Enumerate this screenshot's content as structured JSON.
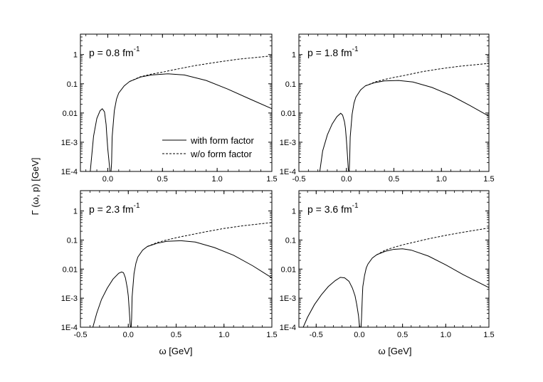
{
  "chart_data": {
    "type": "line",
    "layout": "2x2 panels",
    "ylabel": "Γ (ω, p)  [GeV]",
    "xlabel": "ω [GeV]",
    "yscale": "log",
    "ylim": [
      0.0001,
      5
    ],
    "y_ticks": [
      {
        "value": 0.0001,
        "label": "1E-4"
      },
      {
        "value": 0.001,
        "label": "1E-3"
      },
      {
        "value": 0.01,
        "label": "0.01"
      },
      {
        "value": 0.1,
        "label": "0.1"
      },
      {
        "value": 1,
        "label": "1"
      }
    ],
    "legend": {
      "placement": "lower-right of top-left panel",
      "entries": [
        {
          "label": "with form factor",
          "style": "solid"
        },
        {
          "label": "w/o form factor",
          "style": "dashed"
        }
      ]
    },
    "panels": [
      {
        "label_main": "p = 0.8 fm",
        "label_sup": "-1",
        "xlim": [
          -0.25,
          1.5
        ],
        "x_ticks": [
          0.0,
          0.5,
          1.0,
          1.5
        ],
        "x_tick_labels": [
          "0.0",
          "0.5",
          "1.0",
          "1.5"
        ],
        "series": [
          {
            "name": "with form factor",
            "style": "solid",
            "x": [
              -0.16,
              -0.13,
              -0.1,
              -0.07,
              -0.05,
              -0.03,
              -0.015,
              -0.01,
              0.0,
              0.01,
              0.02,
              0.025,
              0.03,
              0.035,
              0.04,
              0.06,
              0.08,
              0.1,
              0.15,
              0.2,
              0.3,
              0.4,
              0.55,
              0.7,
              0.9,
              1.1,
              1.3,
              1.5
            ],
            "y": [
              0.0001,
              0.0016,
              0.0065,
              0.012,
              0.014,
              0.011,
              0.004,
              0.002,
              0.0006,
              0.00025,
              0.0001,
              0.0001,
              0.0001,
              0.0002,
              0.0015,
              0.012,
              0.03,
              0.048,
              0.085,
              0.12,
              0.17,
              0.2,
              0.22,
              0.2,
              0.13,
              0.065,
              0.03,
              0.014
            ]
          },
          {
            "name": "w/o form factor",
            "style": "dashed",
            "x": [
              0.2,
              0.3,
              0.4,
              0.5,
              0.6,
              0.8,
              1.0,
              1.2,
              1.5
            ],
            "y": [
              0.12,
              0.175,
              0.215,
              0.25,
              0.3,
              0.42,
              0.55,
              0.7,
              0.9
            ]
          }
        ]
      },
      {
        "label_main": "p = 1.8 fm",
        "label_sup": "-1",
        "xlim": [
          -0.5,
          1.5
        ],
        "x_ticks": [
          -0.5,
          0.0,
          0.5,
          1.0,
          1.5
        ],
        "x_tick_labels": [
          "-0.5",
          "0.0",
          "0.5",
          "1.0",
          "1.5"
        ],
        "series": [
          {
            "name": "with form factor",
            "style": "solid",
            "x": [
              -0.28,
              -0.25,
              -0.2,
              -0.15,
              -0.1,
              -0.06,
              -0.04,
              -0.02,
              -0.01,
              0.0,
              0.01,
              0.02,
              0.025,
              0.03,
              0.035,
              0.04,
              0.06,
              0.08,
              0.1,
              0.15,
              0.2,
              0.3,
              0.4,
              0.55,
              0.7,
              0.9,
              1.1,
              1.3,
              1.5
            ],
            "y": [
              0.0001,
              0.0005,
              0.0018,
              0.0042,
              0.0075,
              0.0098,
              0.0085,
              0.005,
              0.003,
              0.0012,
              0.0004,
              0.00012,
              0.0001,
              0.0001,
              0.0003,
              0.0015,
              0.009,
              0.022,
              0.035,
              0.062,
              0.085,
              0.11,
              0.125,
              0.13,
              0.115,
              0.075,
              0.04,
              0.018,
              0.0078
            ]
          },
          {
            "name": "w/o form factor",
            "style": "dashed",
            "x": [
              0.2,
              0.3,
              0.4,
              0.5,
              0.6,
              0.8,
              1.0,
              1.2,
              1.5
            ],
            "y": [
              0.085,
              0.115,
              0.14,
              0.165,
              0.19,
              0.26,
              0.33,
              0.4,
              0.5
            ]
          }
        ]
      },
      {
        "label_main": "p = 2.3 fm",
        "label_sup": "-1",
        "xlim": [
          -0.5,
          1.5
        ],
        "x_ticks": [
          -0.5,
          0.0,
          0.5,
          1.0,
          1.5
        ],
        "x_tick_labels": [
          "-0.5",
          "0.0",
          "0.5",
          "1.0",
          "1.5"
        ],
        "series": [
          {
            "name": "with form factor",
            "style": "solid",
            "x": [
              -0.37,
              -0.33,
              -0.28,
              -0.22,
              -0.16,
              -0.1,
              -0.07,
              -0.05,
              -0.03,
              -0.01,
              0.0,
              0.01,
              0.02,
              0.025,
              0.03,
              0.035,
              0.04,
              0.06,
              0.08,
              0.1,
              0.15,
              0.2,
              0.3,
              0.4,
              0.55,
              0.7,
              0.9,
              1.1,
              1.3,
              1.5
            ],
            "y": [
              0.0001,
              0.0003,
              0.0009,
              0.0022,
              0.0045,
              0.0072,
              0.008,
              0.0075,
              0.005,
              0.0022,
              0.0012,
              0.0004,
              0.00012,
              0.0001,
              0.0001,
              0.0002,
              0.0011,
              0.007,
              0.016,
              0.026,
              0.045,
              0.06,
              0.077,
              0.09,
              0.095,
              0.085,
              0.055,
              0.03,
              0.013,
              0.005
            ]
          },
          {
            "name": "w/o form factor",
            "style": "dashed",
            "x": [
              0.2,
              0.3,
              0.4,
              0.5,
              0.6,
              0.8,
              1.0,
              1.2,
              1.5
            ],
            "y": [
              0.06,
              0.082,
              0.1,
              0.12,
              0.14,
              0.19,
              0.25,
              0.31,
              0.4
            ]
          }
        ]
      },
      {
        "label_main": "p = 3.6 fm",
        "label_sup": "-1",
        "xlim": [
          -0.7,
          1.5
        ],
        "x_ticks": [
          -0.5,
          0.0,
          0.5,
          1.0,
          1.5
        ],
        "x_tick_labels": [
          "-0.5",
          "0.0",
          "0.5",
          "1.0",
          "1.5"
        ],
        "series": [
          {
            "name": "with form factor",
            "style": "solid",
            "x": [
              -0.65,
              -0.6,
              -0.52,
              -0.44,
              -0.36,
              -0.28,
              -0.22,
              -0.17,
              -0.12,
              -0.08,
              -0.05,
              -0.03,
              -0.01,
              0.0,
              0.01,
              0.02,
              0.025,
              0.03,
              0.035,
              0.04,
              0.06,
              0.08,
              0.1,
              0.15,
              0.2,
              0.3,
              0.4,
              0.5,
              0.6,
              0.8,
              1.0,
              1.2,
              1.5
            ],
            "y": [
              0.0001,
              0.00022,
              0.0006,
              0.0013,
              0.0025,
              0.004,
              0.0052,
              0.005,
              0.0038,
              0.0022,
              0.0012,
              0.0006,
              0.00025,
              0.00012,
              0.0001,
              0.0001,
              0.0002,
              0.0005,
              0.0012,
              0.0025,
              0.006,
              0.011,
              0.015,
              0.024,
              0.031,
              0.041,
              0.048,
              0.05,
              0.045,
              0.028,
              0.014,
              0.0065,
              0.0023
            ]
          },
          {
            "name": "w/o form factor",
            "style": "dashed",
            "x": [
              0.2,
              0.3,
              0.4,
              0.5,
              0.6,
              0.8,
              1.0,
              1.2,
              1.5
            ],
            "y": [
              0.031,
              0.045,
              0.056,
              0.068,
              0.08,
              0.11,
              0.145,
              0.185,
              0.26
            ]
          }
        ]
      }
    ]
  }
}
